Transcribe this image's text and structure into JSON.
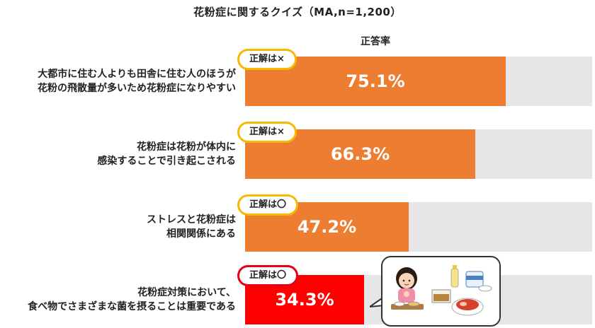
{
  "chart_data": {
    "type": "bar",
    "orientation": "horizontal",
    "title": "花粉症に関するクイズ（MA,n=1,200）",
    "xlabel": "正答率",
    "xlim": [
      0,
      100
    ],
    "unit": "%",
    "categories": [
      "大都市に住む人よりも田舎に住む人のほうが\n花粉の飛散量が多いため花粉症になりやすい",
      "花粉症は花粉が体内に\n感染することで引き起こされる",
      "ストレスと花粉症は\n相関関係にある",
      "花粉症対策において、\n食べ物でさまざまな菌を摂ることは重要である"
    ],
    "values": [
      75.1,
      66.3,
      47.2,
      34.3
    ],
    "value_labels": [
      "75.1%",
      "66.3%",
      "47.2%",
      "34.3%"
    ],
    "answer_badges": [
      "正解は×",
      "正解は×",
      "正解は〇",
      "正解は〇"
    ],
    "bar_colors": [
      "#ed7d31",
      "#ed7d31",
      "#ed7d31",
      "#ff0000"
    ],
    "badge_colors": [
      "#f6b800",
      "#f6b800",
      "#f6b800",
      "#e60012"
    ],
    "track_color": "#e6e6e6"
  }
}
